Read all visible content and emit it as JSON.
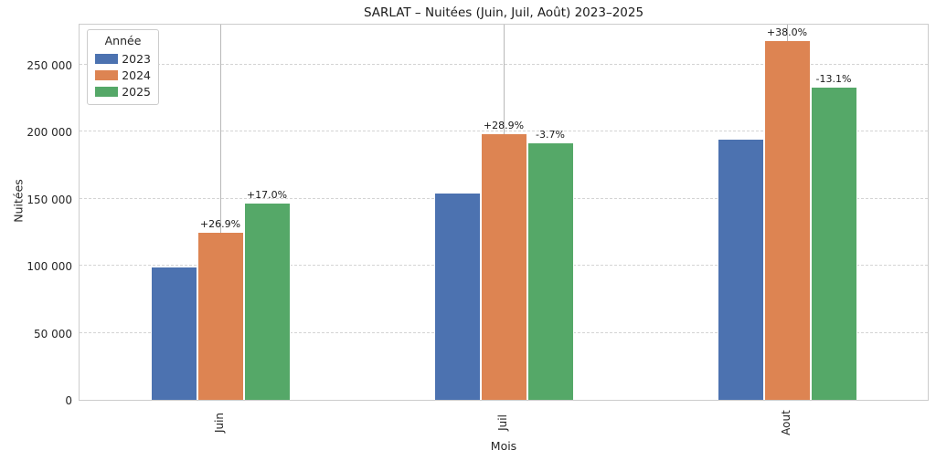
{
  "title": "SARLAT – Nuitées (Juin, Juil, Août) 2023–2025",
  "ylabel": "Nuitées",
  "xlabel": "Mois",
  "legend": {
    "title": "Année",
    "entries": [
      {
        "label": "2023",
        "color": "#4C72B0"
      },
      {
        "label": "2024",
        "color": "#DD8452"
      },
      {
        "label": "2025",
        "color": "#55A868"
      }
    ]
  },
  "chart_data": {
    "type": "bar",
    "title": "SARLAT – Nuitées (Juin, Juil, Août) 2023–2025",
    "xlabel": "Mois",
    "ylabel": "Nuitées",
    "categories": [
      "Juin",
      "Juil",
      "Aout"
    ],
    "series": [
      {
        "name": "2023",
        "color": "#4C72B0",
        "values": [
          98500,
          154000,
          194000
        ],
        "pct_labels": [
          null,
          null,
          null
        ]
      },
      {
        "name": "2024",
        "color": "#DD8452",
        "values": [
          125000,
          198500,
          267700
        ],
        "pct_labels": [
          "+26.9%",
          "+28.9%",
          "+38.0%"
        ]
      },
      {
        "name": "2025",
        "color": "#55A868",
        "values": [
          146250,
          191150,
          232650
        ],
        "pct_labels": [
          "+17.0%",
          "-3.7%",
          "-13.1%"
        ]
      }
    ],
    "ylim": [
      0,
      281000
    ],
    "ytick_values": [
      0,
      50000,
      100000,
      150000,
      200000,
      250000
    ],
    "ytick_labels": [
      "0",
      "50 000",
      "100 000",
      "150 000",
      "200 000",
      "250 000"
    ],
    "grid": {
      "horizontal": "dashed",
      "vertical": "solid-at-category-centers"
    },
    "legend_position": "upper-left",
    "legend_title": "Année"
  }
}
